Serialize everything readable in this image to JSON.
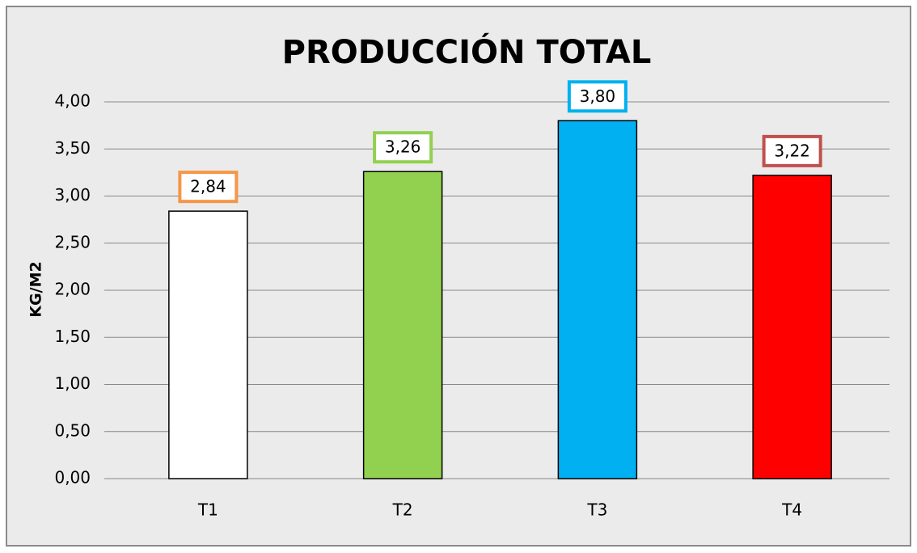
{
  "chart_data": {
    "type": "bar",
    "title": "PRODUCCIÓN TOTAL",
    "y_label": "KG/M2",
    "categories": [
      "T1",
      "T2",
      "T3",
      "T4"
    ],
    "values": [
      2.84,
      3.26,
      3.8,
      3.22
    ],
    "value_labels": [
      "2,84",
      "3,26",
      "3,80",
      "3,22"
    ],
    "colors": [
      "#ffffff",
      "#92d050",
      "#00b0f0",
      "#ff0000"
    ],
    "label_border_colors": [
      "#f79646",
      "#92d050",
      "#00b0f0",
      "#c0504d"
    ],
    "ylim": [
      0,
      4
    ],
    "yticks": [
      {
        "value": 0,
        "label": "0,00"
      },
      {
        "value": 0.5,
        "label": "0,50"
      },
      {
        "value": 1,
        "label": "1,00"
      },
      {
        "value": 1.5,
        "label": "1,50"
      },
      {
        "value": 2,
        "label": "2,00"
      },
      {
        "value": 2.5,
        "label": "2,50"
      },
      {
        "value": 3,
        "label": "3,00"
      },
      {
        "value": 3.5,
        "label": "3,50"
      },
      {
        "value": 4,
        "label": "4,00"
      }
    ],
    "grid": true
  }
}
